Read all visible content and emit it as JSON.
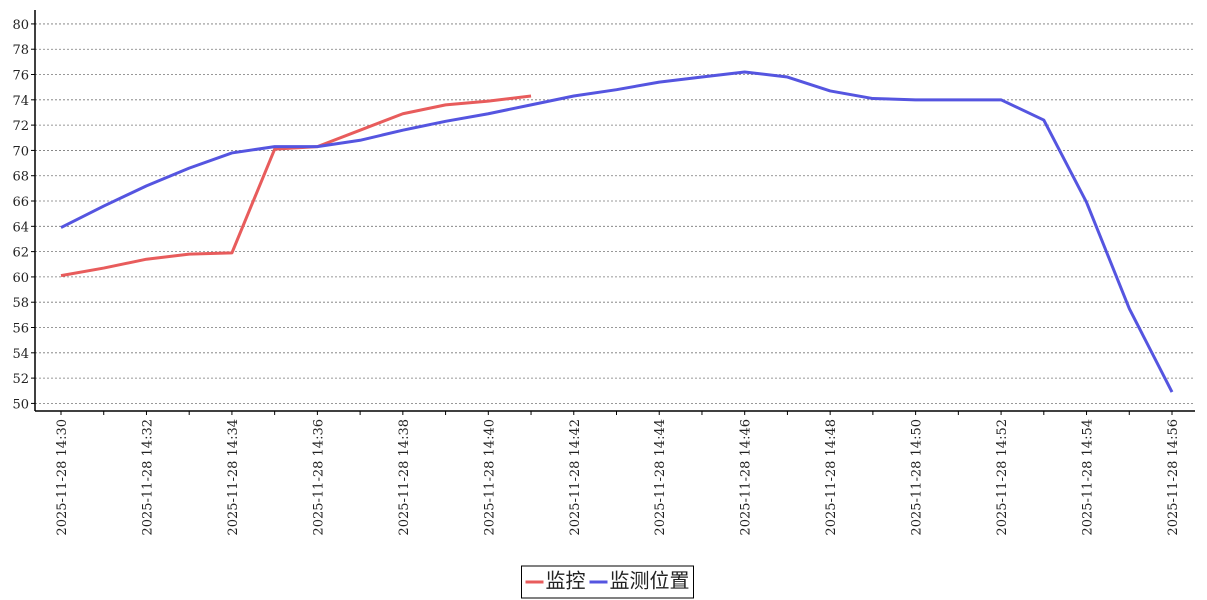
{
  "chart_data": {
    "type": "line",
    "categories": [
      "2025-11-28 14:30",
      null,
      "2025-11-28 14:32",
      null,
      "2025-11-28 14:34",
      null,
      "2025-11-28 14:36",
      null,
      "2025-11-28 14:38",
      null,
      "2025-11-28 14:40",
      null,
      "2025-11-28 14:42",
      null,
      "2025-11-28 14:44",
      null,
      "2025-11-28 14:46",
      null,
      "2025-11-28 14:48",
      null,
      "2025-11-28 14:50",
      null,
      "2025-11-28 14:52",
      null,
      "2025-11-28 14:54",
      null,
      "2025-11-28 14:56"
    ],
    "series": [
      {
        "name": "监控",
        "color": "#e85c5c",
        "values": [
          60.1,
          60.7,
          61.4,
          61.8,
          61.9,
          70.1,
          70.3,
          71.6,
          72.9,
          73.6,
          73.9,
          74.3,
          null,
          null,
          null,
          null,
          null,
          null,
          null,
          null,
          null,
          null,
          null,
          null,
          null,
          null,
          null
        ]
      },
      {
        "name": "监测位置",
        "color": "#5555e0",
        "values": [
          63.9,
          65.6,
          67.2,
          68.6,
          69.8,
          70.3,
          70.3,
          70.8,
          71.6,
          72.3,
          72.9,
          73.6,
          74.3,
          74.8,
          75.4,
          75.8,
          76.2,
          75.8,
          74.7,
          74.1,
          74.0,
          74.0,
          74.0,
          72.4,
          65.9,
          57.5,
          50.9
        ]
      }
    ],
    "ylim": [
      49.4,
      81.1
    ],
    "yticks": [
      50,
      52,
      54,
      56,
      58,
      60,
      62,
      64,
      66,
      68,
      70,
      72,
      74,
      76,
      78,
      80
    ],
    "grid": true,
    "legend": "bottom"
  }
}
